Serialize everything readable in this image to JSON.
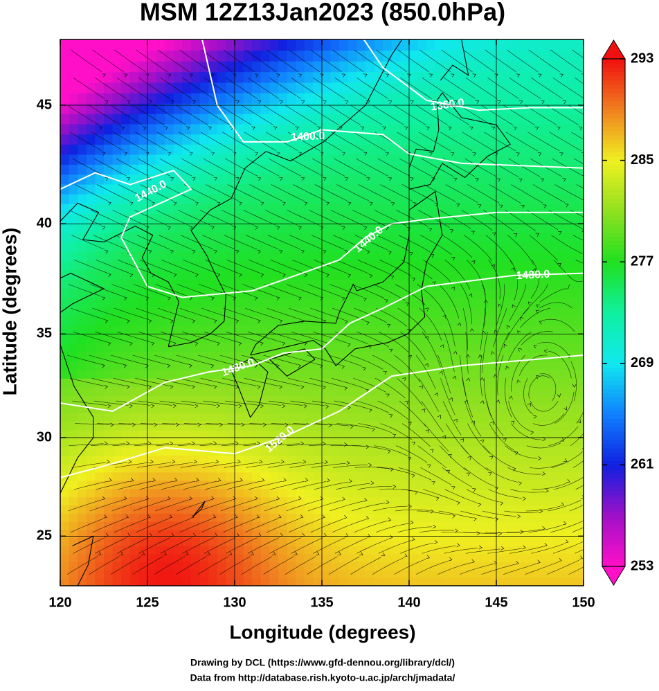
{
  "chart_data": {
    "type": "map",
    "projection": "mercator",
    "title": "MSM 12Z13Jan2023 (850.0hPa)",
    "xlabel": "Longitude (degrees)",
    "ylabel": "Latitude  (degrees)",
    "xlim": [
      120,
      150
    ],
    "ylim": [
      22.4,
      47.6
    ],
    "xticks": [
      120,
      125,
      130,
      135,
      140,
      145,
      150
    ],
    "yticks": [
      25,
      30,
      35,
      40,
      45
    ],
    "grid": true,
    "colorbar": {
      "lim": [
        253,
        293
      ],
      "ticks": [
        253,
        261,
        269,
        277,
        285,
        293
      ],
      "colors": [
        "#ff10c8",
        "#a010c8",
        "#1020e0",
        "#1080ff",
        "#10e8f0",
        "#10f0a0",
        "#20e020",
        "#90e020",
        "#f0f020",
        "#f08020",
        "#f01010"
      ]
    },
    "contours": [
      {
        "value": 1360,
        "label": "1360.0"
      },
      {
        "value": 1400,
        "label": "1400.0"
      },
      {
        "value": 1440,
        "label": "1440.0"
      },
      {
        "value": 1480,
        "label": "1480.0"
      },
      {
        "value": 1520,
        "label": "1520.0"
      }
    ],
    "credits": [
      "Drawing by DCL (https://www.gfd-dennou.org/library/dcl/)",
      "Data from http://database.rish.kyoto-u.ac.jp/arch/jmadata/"
    ]
  }
}
